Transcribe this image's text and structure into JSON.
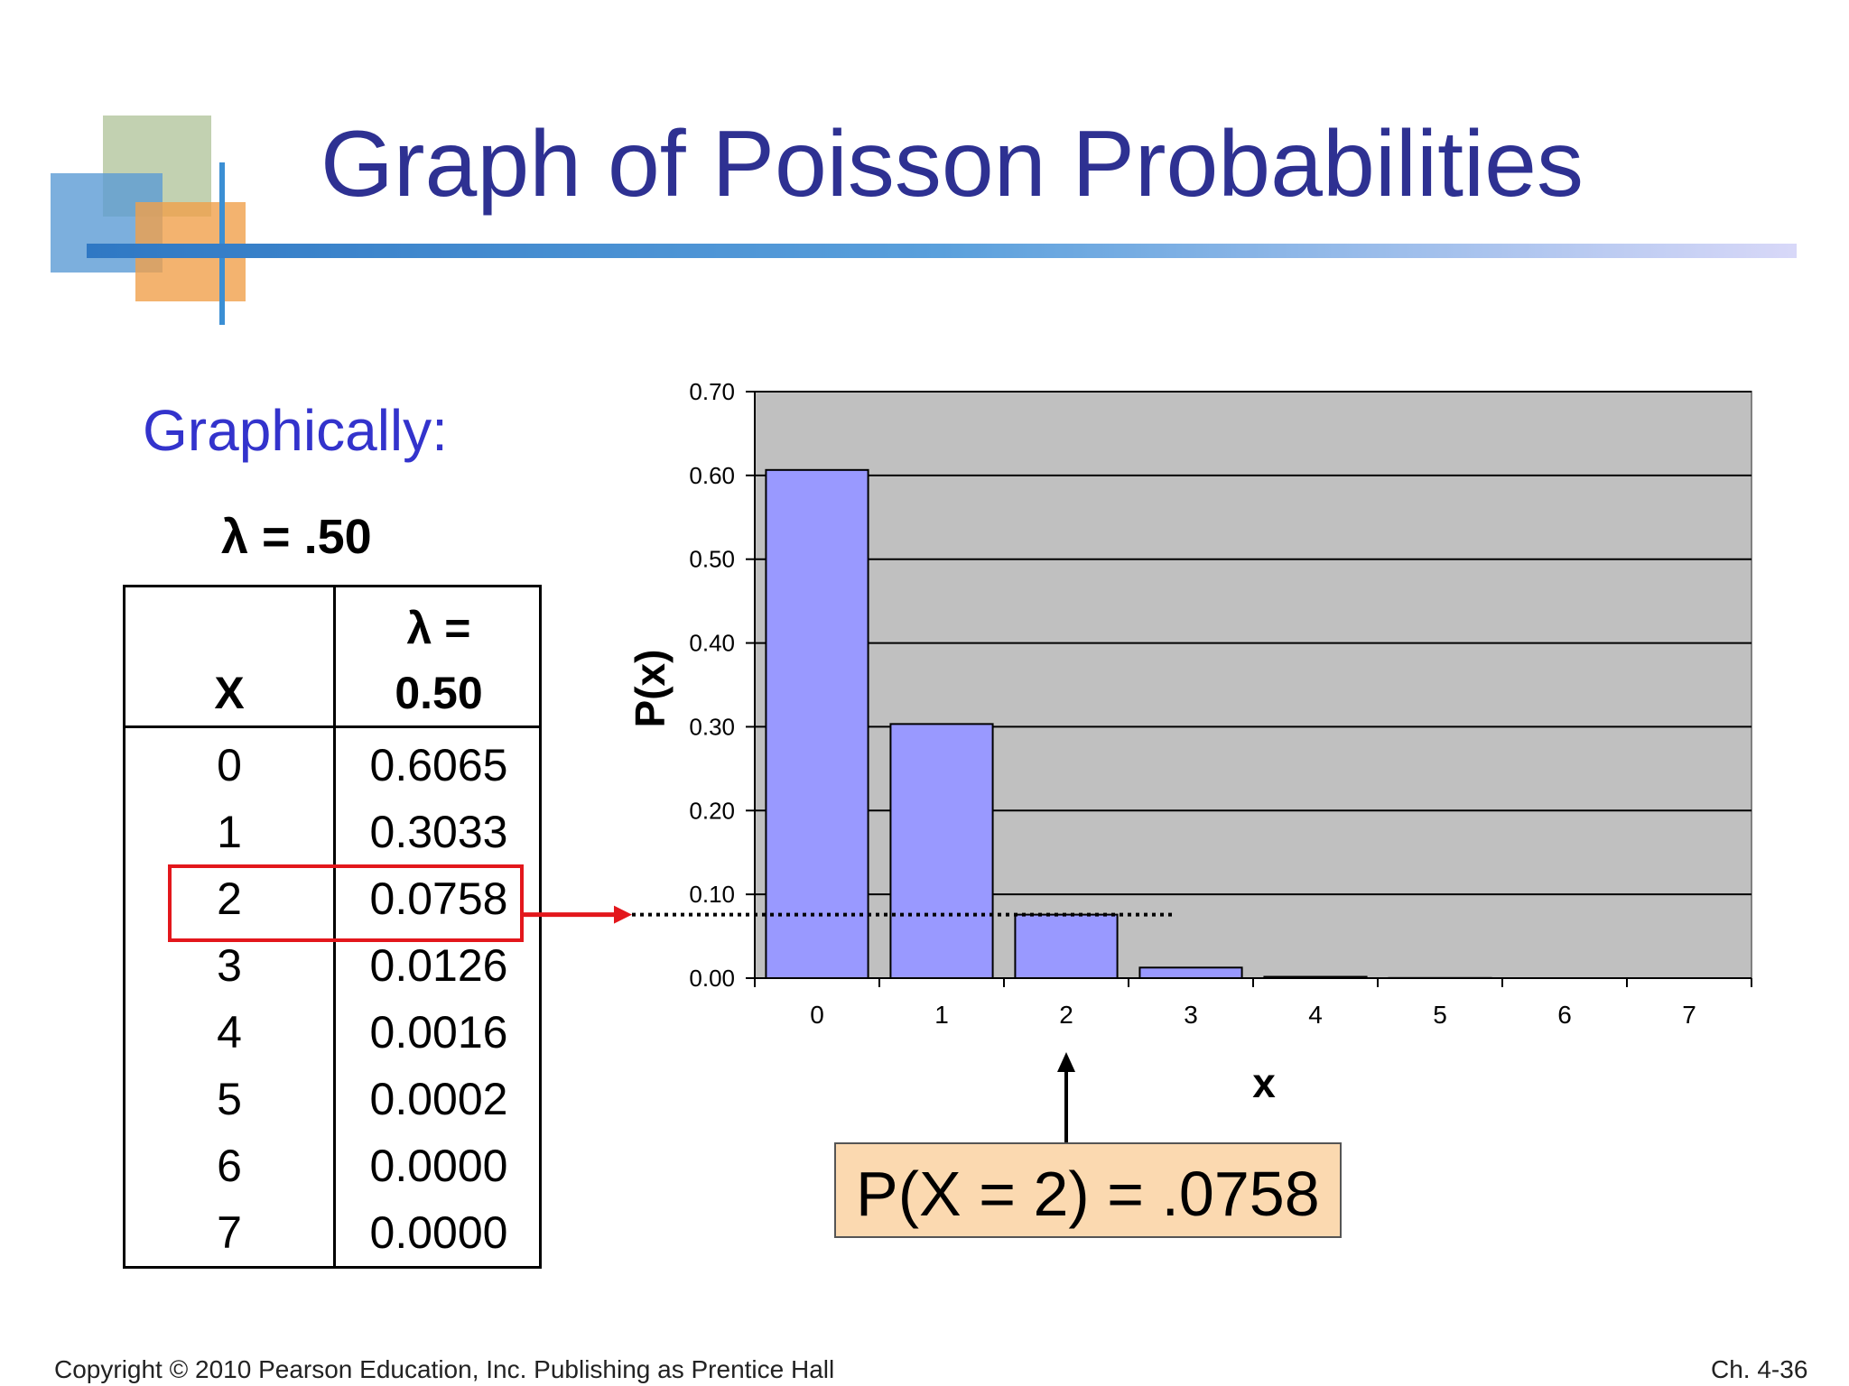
{
  "slide": {
    "title": "Graph of Poisson Probabilities",
    "subtitle": "Graphically:",
    "lambda_label": "λ = .50",
    "callout": "P(X = 2) = .0758",
    "footer_left": "Copyright © 2010 Pearson Education, Inc. Publishing as Prentice Hall",
    "footer_right": "Ch. 4-36"
  },
  "table": {
    "header_x": "X",
    "header_lambda_line1": "λ =",
    "header_lambda_line2": "0.50",
    "rows": [
      {
        "x": "0",
        "p": "0.6065"
      },
      {
        "x": "1",
        "p": "0.3033"
      },
      {
        "x": "2",
        "p": "0.0758"
      },
      {
        "x": "3",
        "p": "0.0126"
      },
      {
        "x": "4",
        "p": "0.0016"
      },
      {
        "x": "5",
        "p": "0.0002"
      },
      {
        "x": "6",
        "p": "0.0000"
      },
      {
        "x": "7",
        "p": "0.0000"
      }
    ],
    "highlighted_row": 2
  },
  "colors": {
    "title": "#2e3192",
    "subtitle": "#3333cc",
    "bar_fill": "#9999ff",
    "plot_bg": "#c0c0c0",
    "highlight": "#e3171c",
    "callout_bg": "#fbd9b0"
  },
  "chart_data": {
    "type": "bar",
    "categories": [
      "0",
      "1",
      "2",
      "3",
      "4",
      "5",
      "6",
      "7"
    ],
    "values": [
      0.6065,
      0.3033,
      0.0758,
      0.0126,
      0.0016,
      0.0002,
      0.0,
      0.0
    ],
    "title": "",
    "xlabel": "x",
    "ylabel": "P(x)",
    "ylim": [
      0,
      0.7
    ],
    "yticks": [
      "0.00",
      "0.10",
      "0.20",
      "0.30",
      "0.40",
      "0.50",
      "0.60",
      "0.70"
    ],
    "grid": true,
    "reference_line_value": 0.0758
  }
}
